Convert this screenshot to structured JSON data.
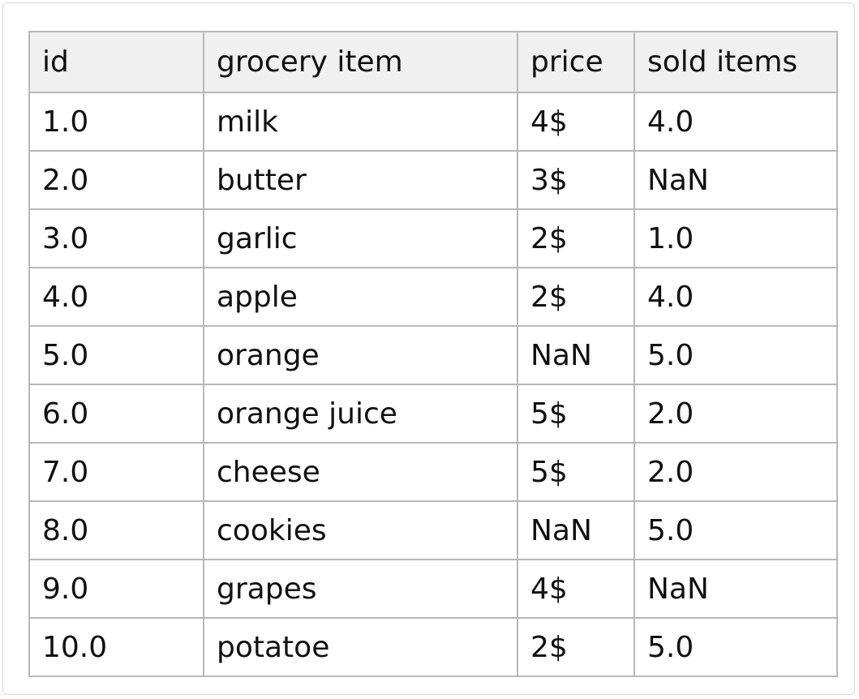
{
  "table": {
    "headers": [
      "id",
      "grocery item",
      "price",
      "sold items"
    ],
    "rows": [
      [
        "1.0",
        "milk",
        "4$",
        "4.0"
      ],
      [
        "2.0",
        "butter",
        "3$",
        "NaN"
      ],
      [
        "3.0",
        "garlic",
        "2$",
        "1.0"
      ],
      [
        "4.0",
        "apple",
        "2$",
        "4.0"
      ],
      [
        "5.0",
        "orange",
        "NaN",
        "5.0"
      ],
      [
        "6.0",
        "orange juice",
        "5$",
        "2.0"
      ],
      [
        "7.0",
        "cheese",
        "5$",
        "2.0"
      ],
      [
        "8.0",
        "cookies",
        "NaN",
        "5.0"
      ],
      [
        "9.0",
        "grapes",
        "4$",
        "NaN"
      ],
      [
        "10.0",
        "potatoe",
        "2$",
        "5.0"
      ]
    ]
  },
  "colors": {
    "header_background": "#f0f0f0",
    "grid_lines": "#b8b8b8",
    "text": "#111111"
  }
}
